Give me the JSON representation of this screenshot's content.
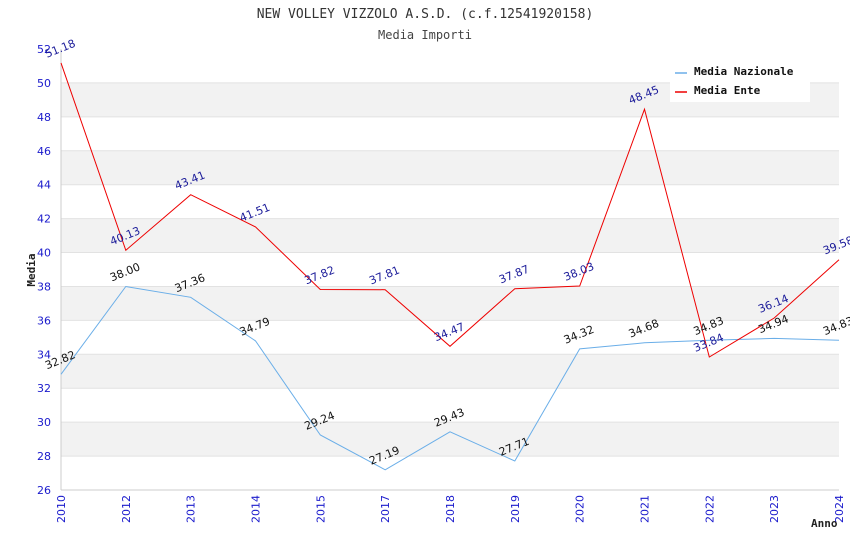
{
  "chart_data": {
    "type": "line",
    "title": "NEW VOLLEY VIZZOLO A.S.D. (c.f.12541920158)",
    "subtitle": "Media Importi",
    "xlabel": "Anno",
    "ylabel": "Media",
    "ylim": [
      26,
      52
    ],
    "y_ticks": [
      "26",
      "28",
      "30",
      "32",
      "34",
      "36",
      "38",
      "40",
      "42",
      "44",
      "46",
      "48",
      "50",
      "52"
    ],
    "categories": [
      "2010",
      "2012",
      "2013",
      "2014",
      "2015",
      "2017",
      "2018",
      "2019",
      "2020",
      "2021",
      "2022",
      "2023",
      "2024"
    ],
    "series": [
      {
        "name": "Media Nazionale",
        "color": "#6aaee8",
        "values": [
          32.82,
          38.0,
          37.36,
          34.79,
          29.24,
          27.19,
          29.43,
          27.71,
          34.32,
          34.68,
          34.83,
          34.94,
          34.83
        ],
        "labels": [
          "32.82",
          "38.00",
          "37.36",
          "34.79",
          "29.24",
          "27.19",
          "29.43",
          "27.71",
          "34.32",
          "34.68",
          "34.83",
          "34.94",
          "34.83"
        ]
      },
      {
        "name": "Media Ente",
        "color": "#ee0000",
        "values": [
          51.18,
          40.13,
          43.41,
          41.51,
          37.82,
          37.81,
          34.47,
          37.87,
          38.03,
          48.45,
          33.84,
          36.14,
          39.58
        ],
        "labels": [
          "51.18",
          "40.13",
          "43.41",
          "41.51",
          "37.82",
          "37.81",
          "34.47",
          "37.87",
          "38.03",
          "48.45",
          "33.84",
          "36.14",
          "39.58"
        ]
      }
    ],
    "legend_position": "top-right",
    "grid": true
  }
}
